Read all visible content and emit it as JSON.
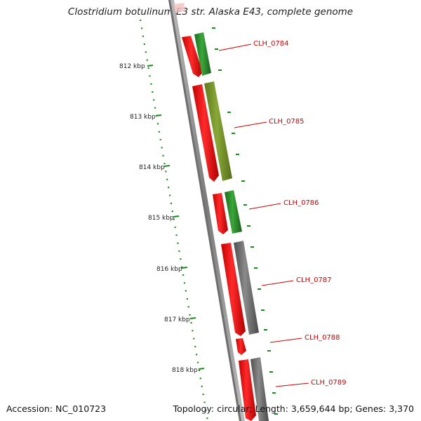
{
  "title": "Clostridium botulinum E3 str. Alaska E43, complete genome",
  "accession": "Accession: NC_010723",
  "summary": "Topology: circular; Length: 3,659,644 bp; Genes: 3,370",
  "ticks": [
    "812 kbp",
    "813 kbp",
    "814 kbp",
    "815 kbp",
    "816 kbp",
    "817 kbp",
    "818 kbp"
  ],
  "genes": [
    {
      "label": "CLH_0784",
      "color": "#2e8b2e"
    },
    {
      "label": "CLH_0785",
      "color": "#7a9a2a"
    },
    {
      "label": "CLH_0786",
      "color": "#2e8b2e"
    },
    {
      "label": "CLH_0787",
      "color": "#6e6e6e"
    },
    {
      "label": "CLH_0788",
      "color": "#ff0000"
    },
    {
      "label": "CLH_0789",
      "color": "#6e6e6e"
    }
  ],
  "colors": {
    "cds": "#ff0000",
    "backbone": "#8a8a8a",
    "tick_dots": "#1a8a1a",
    "label": "#cc0000"
  }
}
